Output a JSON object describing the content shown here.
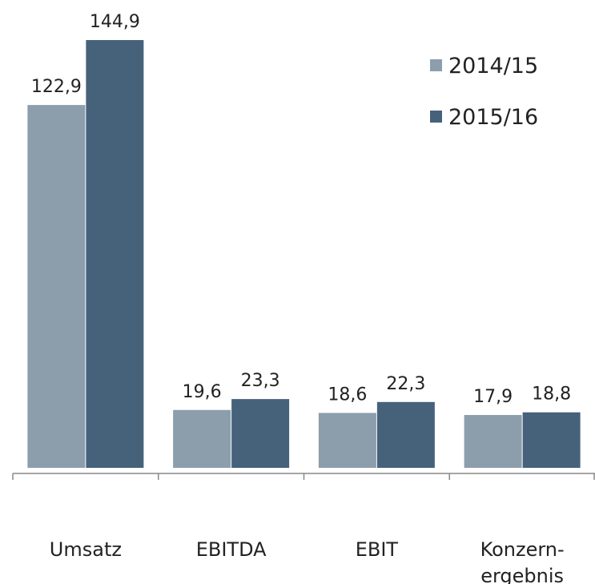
{
  "chart_data": {
    "type": "bar",
    "categories": [
      "Umsatz",
      "EBITDA",
      "EBIT",
      "Konzern-\nergebnis"
    ],
    "series": [
      {
        "name": "2014/15",
        "color": "#8c9eac",
        "values": [
          122.9,
          19.6,
          18.6,
          17.9
        ],
        "value_labels": [
          "122,9",
          "19,6",
          "18,6",
          "17,9"
        ]
      },
      {
        "name": "2015/16",
        "color": "#46627b",
        "values": [
          144.9,
          23.3,
          22.3,
          18.8
        ],
        "value_labels": [
          "144,9",
          "23,3",
          "22,3",
          "18,8"
        ]
      }
    ],
    "legend": "upper right"
  }
}
